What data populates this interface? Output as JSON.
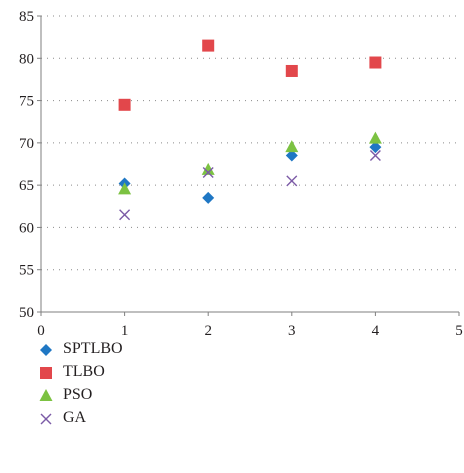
{
  "chart_data": {
    "type": "scatter",
    "title": "",
    "xlabel": "",
    "ylabel": "",
    "xlim": [
      0,
      5
    ],
    "ylim": [
      50,
      85
    ],
    "xticks": [
      0,
      1,
      2,
      3,
      4,
      5
    ],
    "yticks": [
      50,
      55,
      60,
      65,
      70,
      75,
      80,
      85
    ],
    "grid": "horizontal dotted",
    "legend_position": "bottom",
    "series": [
      {
        "name": "SPTLBO",
        "marker": "diamond",
        "color": "#1f77c4",
        "x": [
          1,
          2,
          3,
          4
        ],
        "y": [
          65.2,
          63.5,
          68.5,
          69.5
        ]
      },
      {
        "name": "TLBO",
        "marker": "square",
        "color": "#e2474b",
        "x": [
          1,
          2,
          3,
          4
        ],
        "y": [
          74.5,
          81.5,
          78.5,
          79.5
        ]
      },
      {
        "name": "PSO",
        "marker": "triangle",
        "color": "#7cc242",
        "x": [
          1,
          2,
          3,
          4
        ],
        "y": [
          64.5,
          66.8,
          69.5,
          70.5
        ]
      },
      {
        "name": "GA",
        "marker": "x",
        "color": "#7b5aa6",
        "x": [
          1,
          2,
          3,
          4
        ],
        "y": [
          61.5,
          66.5,
          65.5,
          68.5
        ]
      }
    ]
  }
}
